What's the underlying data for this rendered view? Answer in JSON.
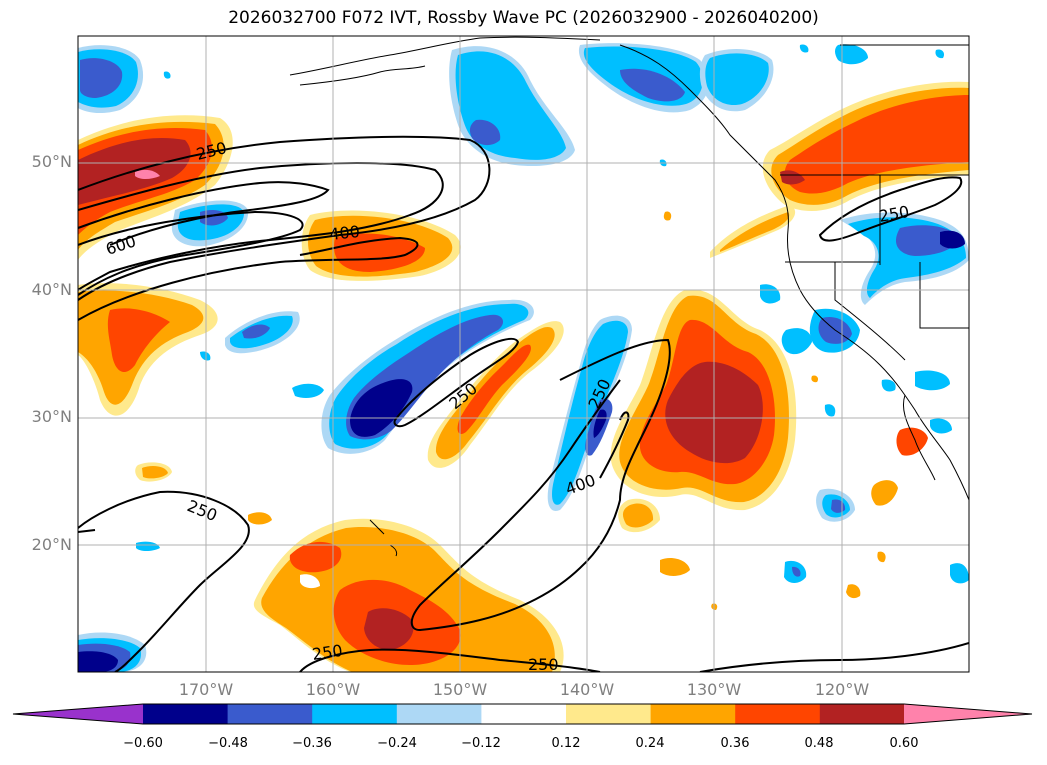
{
  "title": "2026032700 F072 IVT, Rossby Wave PC (2026032900 - 2026040200)",
  "lat_labels": [
    "50°N",
    "40°N",
    "30°N",
    "20°N"
  ],
  "lon_labels": [
    "170°W",
    "160°W",
    "150°W",
    "140°W",
    "130°W",
    "120°W"
  ],
  "contour_labels": [
    "250",
    "600",
    "400",
    "250",
    "250",
    "400",
    "250",
    "250",
    "250",
    "250"
  ],
  "colorbar": {
    "ticks": [
      "−0.60",
      "−0.48",
      "−0.36",
      "−0.24",
      "−0.12",
      "0.12",
      "0.24",
      "0.36",
      "0.48",
      "0.60"
    ],
    "colors": [
      "#9932cc",
      "#00008b",
      "#3a5bcd",
      "#00bfff",
      "#add8f5",
      "#ffffff",
      "#ffe98c",
      "#ffa500",
      "#ff4500",
      "#b22222",
      "#ff82ab"
    ]
  }
}
